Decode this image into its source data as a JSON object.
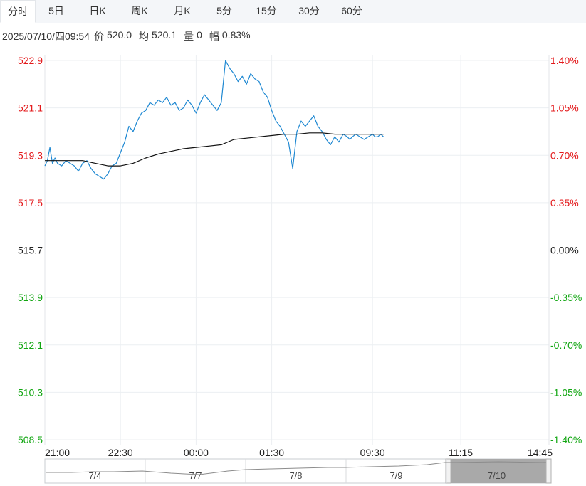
{
  "tabs": [
    {
      "label": "分时",
      "active": true
    },
    {
      "label": "5日",
      "active": false
    },
    {
      "label": "日K",
      "active": false
    },
    {
      "label": "周K",
      "active": false
    },
    {
      "label": "月K",
      "active": false
    },
    {
      "label": "5分",
      "active": false
    },
    {
      "label": "15分",
      "active": false
    },
    {
      "label": "30分",
      "active": false
    },
    {
      "label": "60分",
      "active": false
    }
  ],
  "info": {
    "datetime": "2025/07/10/四09:54",
    "price_label": "价",
    "price_value": "520.0",
    "avg_label": "均",
    "avg_value": "520.1",
    "volume_label": "量",
    "volume_value": "0",
    "change_label": "幅",
    "change_value": "0.83%"
  },
  "colors": {
    "up": "#e3191b",
    "down": "#12a612",
    "neutral": "#222222",
    "price_line": "#1e88d2",
    "avg_line": "#111111",
    "grid": "#eceff2"
  },
  "chart_data": {
    "type": "line",
    "y_left_ticks": [
      "522.9",
      "521.1",
      "519.3",
      "517.5",
      "515.7",
      "513.9",
      "512.1",
      "510.3",
      "508.5"
    ],
    "y_right_ticks": [
      "1.40%",
      "1.05%",
      "0.70%",
      "0.35%",
      "0.00%",
      "-0.35%",
      "-0.70%",
      "-1.05%",
      "-1.40%"
    ],
    "ylim": [
      508.5,
      522.9
    ],
    "baseline": 515.7,
    "x_ticks": [
      "21:00",
      "22:30",
      "00:00",
      "01:30",
      "09:30",
      "11:15",
      "14:45"
    ],
    "x_tick_minutes": [
      0,
      90,
      180,
      270,
      390,
      495,
      600
    ],
    "session_minutes": 600,
    "series": [
      {
        "key": "price",
        "x_minutes": [
          0,
          3,
          6,
          9,
          12,
          15,
          20,
          25,
          30,
          35,
          40,
          45,
          50,
          55,
          60,
          65,
          70,
          75,
          80,
          85,
          90,
          95,
          100,
          105,
          110,
          115,
          120,
          125,
          130,
          135,
          140,
          145,
          150,
          155,
          160,
          165,
          170,
          175,
          180,
          185,
          190,
          195,
          200,
          205,
          210,
          215,
          220,
          225,
          230,
          235,
          240,
          245,
          250,
          255,
          260,
          265,
          270,
          275,
          280,
          285,
          290,
          295,
          300,
          305,
          310,
          315,
          320,
          325,
          330,
          335,
          340,
          345,
          350,
          355,
          360,
          363,
          366,
          370,
          375,
          380,
          385,
          390,
          393,
          396,
          400,
          403
        ],
        "values": [
          518.9,
          519.1,
          519.6,
          519.0,
          519.2,
          519.0,
          518.9,
          519.1,
          519.0,
          518.9,
          518.7,
          519.0,
          519.1,
          518.8,
          518.6,
          518.5,
          518.4,
          518.6,
          518.9,
          519.0,
          519.4,
          519.8,
          520.4,
          520.2,
          520.6,
          520.9,
          521.0,
          521.3,
          521.2,
          521.4,
          521.3,
          521.5,
          521.2,
          521.3,
          521.0,
          521.1,
          521.4,
          521.2,
          520.9,
          521.3,
          521.6,
          521.4,
          521.2,
          521.0,
          521.3,
          522.9,
          522.6,
          522.4,
          522.1,
          522.3,
          522.0,
          522.4,
          522.2,
          522.1,
          521.7,
          521.5,
          521.0,
          520.6,
          520.4,
          520.1,
          519.8,
          518.8,
          520.2,
          520.6,
          520.4,
          520.6,
          520.8,
          520.4,
          520.2,
          519.9,
          519.7,
          520.0,
          519.8,
          520.1,
          520.0,
          519.9,
          520.0,
          520.1,
          520.0,
          519.9,
          520.0,
          520.1,
          520.0,
          520.0,
          520.1,
          520.0
        ]
      },
      {
        "key": "average",
        "x_minutes": [
          0,
          15,
          30,
          45,
          60,
          75,
          90,
          105,
          120,
          135,
          150,
          165,
          180,
          195,
          210,
          225,
          240,
          255,
          270,
          285,
          300,
          315,
          330,
          345,
          360,
          375,
          390,
          403
        ],
        "values": [
          519.1,
          519.1,
          519.1,
          519.1,
          519.0,
          518.9,
          518.9,
          519.0,
          519.2,
          519.35,
          519.45,
          519.55,
          519.6,
          519.65,
          519.7,
          519.9,
          519.95,
          520.0,
          520.05,
          520.1,
          520.1,
          520.15,
          520.15,
          520.1,
          520.1,
          520.1,
          520.1,
          520.1
        ]
      }
    ]
  },
  "navigator": {
    "labels": [
      "7/4",
      "7/7",
      "7/8",
      "7/9",
      "7/10"
    ]
  }
}
